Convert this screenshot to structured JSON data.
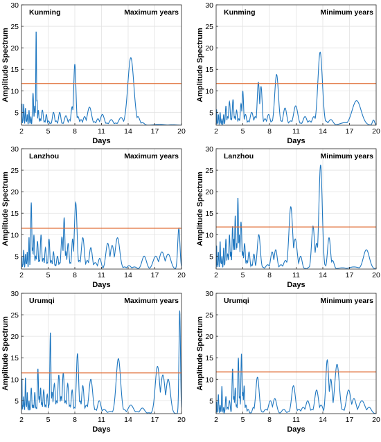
{
  "figure": {
    "threshold_color": "#e0703a",
    "series_color": "#1f77c0",
    "grid_color": "#e2e2e2"
  },
  "chart_data": [
    {
      "type": "line",
      "station": "Kunming",
      "period": "Maximum years",
      "xlabel": "Days",
      "ylabel": "Amplitude Spectrum",
      "xlim": [
        2,
        20
      ],
      "ylim": [
        2,
        30
      ],
      "xticks": [
        2,
        5,
        8,
        11,
        14,
        17,
        20
      ],
      "yticks": [
        5,
        10,
        15,
        20,
        25,
        30
      ],
      "grid": true,
      "threshold": 11.7,
      "peaks": [
        [
          2.05,
          7.5
        ],
        [
          2.15,
          3.0
        ],
        [
          2.25,
          7.0
        ],
        [
          2.35,
          2.5
        ],
        [
          2.45,
          6.0
        ],
        [
          2.55,
          3.0
        ],
        [
          2.65,
          4.5
        ],
        [
          2.75,
          2.2
        ],
        [
          2.85,
          5.5
        ],
        [
          2.95,
          2.5
        ],
        [
          3.05,
          4.0
        ],
        [
          3.15,
          2.2
        ],
        [
          3.3,
          9.5
        ],
        [
          3.5,
          6.5
        ],
        [
          3.65,
          24.3
        ],
        [
          3.75,
          8.0
        ],
        [
          3.9,
          5.5
        ],
        [
          4.1,
          3.5
        ],
        [
          4.35,
          5.5
        ],
        [
          4.6,
          3.0
        ],
        [
          4.8,
          4.5
        ],
        [
          5.05,
          3.0
        ],
        [
          5.3,
          2.5
        ],
        [
          5.6,
          5.0
        ],
        [
          5.9,
          3.0
        ],
        [
          6.3,
          5.0
        ],
        [
          6.6,
          2.5
        ],
        [
          7.0,
          4.2
        ],
        [
          7.4,
          3.3
        ],
        [
          7.7,
          6.3
        ],
        [
          8.0,
          16.2
        ],
        [
          8.35,
          4.0
        ],
        [
          8.7,
          3.3
        ],
        [
          9.1,
          4.0
        ],
        [
          9.65,
          6.2
        ],
        [
          10.2,
          2.8
        ],
        [
          10.6,
          3.5
        ],
        [
          11.1,
          4.5
        ],
        [
          11.6,
          2.5
        ],
        [
          12.1,
          3.3
        ],
        [
          12.6,
          2.5
        ],
        [
          13.2,
          3.8
        ],
        [
          14.3,
          17.7
        ],
        [
          15.1,
          4.0
        ],
        [
          15.6,
          2.6
        ],
        [
          16.3,
          2.0
        ],
        [
          17.5,
          2.2
        ],
        [
          19.0,
          2.1
        ]
      ]
    },
    {
      "type": "line",
      "station": "Kunming",
      "period": "Minimum years",
      "xlabel": "Days",
      "ylabel": "Amplitude Spectrum",
      "xlim": [
        2,
        20
      ],
      "ylim": [
        2,
        30
      ],
      "xticks": [
        2,
        5,
        8,
        11,
        14,
        17,
        20
      ],
      "yticks": [
        5,
        10,
        15,
        20,
        25,
        30
      ],
      "grid": true,
      "threshold": 11.7,
      "peaks": [
        [
          2.05,
          6.0
        ],
        [
          2.15,
          2.5
        ],
        [
          2.25,
          4.5
        ],
        [
          2.35,
          2.2
        ],
        [
          2.45,
          5.0
        ],
        [
          2.55,
          2.5
        ],
        [
          2.65,
          3.5
        ],
        [
          2.75,
          2.2
        ],
        [
          2.85,
          4.5
        ],
        [
          2.95,
          2.4
        ],
        [
          3.1,
          6.5
        ],
        [
          3.3,
          4.0
        ],
        [
          3.5,
          7.5
        ],
        [
          3.7,
          3.5
        ],
        [
          3.9,
          8.0
        ],
        [
          4.1,
          4.0
        ],
        [
          4.3,
          5.5
        ],
        [
          4.55,
          3.5
        ],
        [
          4.8,
          7.0
        ],
        [
          5.0,
          10.0
        ],
        [
          5.3,
          4.5
        ],
        [
          5.6,
          3.0
        ],
        [
          6.0,
          5.0
        ],
        [
          6.4,
          4.0
        ],
        [
          6.75,
          12.0
        ],
        [
          7.05,
          11.0
        ],
        [
          7.5,
          3.5
        ],
        [
          7.9,
          4.5
        ],
        [
          8.3,
          3.0
        ],
        [
          8.8,
          13.8
        ],
        [
          9.3,
          3.0
        ],
        [
          9.75,
          6.0
        ],
        [
          10.4,
          3.0
        ],
        [
          10.95,
          6.5
        ],
        [
          11.5,
          2.5
        ],
        [
          12.0,
          4.0
        ],
        [
          12.5,
          3.0
        ],
        [
          13.0,
          4.0
        ],
        [
          13.7,
          19.0
        ],
        [
          14.3,
          3.0
        ],
        [
          14.9,
          3.3
        ],
        [
          16.5,
          2.6
        ],
        [
          17.8,
          7.7
        ],
        [
          19.0,
          2.0
        ],
        [
          19.7,
          3.2
        ]
      ]
    },
    {
      "type": "line",
      "station": "Lanzhou",
      "period": "Maximum years",
      "xlabel": "Days",
      "ylabel": "Amplitude Spectrum",
      "xlim": [
        2,
        20
      ],
      "ylim": [
        2,
        30
      ],
      "xticks": [
        2,
        5,
        8,
        11,
        14,
        17,
        20
      ],
      "yticks": [
        5,
        10,
        15,
        20,
        25,
        30
      ],
      "grid": true,
      "threshold": 11.5,
      "peaks": [
        [
          2.05,
          5.0
        ],
        [
          2.15,
          3.0
        ],
        [
          2.25,
          6.5
        ],
        [
          2.35,
          2.5
        ],
        [
          2.45,
          5.5
        ],
        [
          2.55,
          3.5
        ],
        [
          2.65,
          6.0
        ],
        [
          2.75,
          2.5
        ],
        [
          2.85,
          9.5
        ],
        [
          2.95,
          3.0
        ],
        [
          3.1,
          17.5
        ],
        [
          3.25,
          7.0
        ],
        [
          3.4,
          10.0
        ],
        [
          3.6,
          5.0
        ],
        [
          3.8,
          8.5
        ],
        [
          4.0,
          4.0
        ],
        [
          4.2,
          10.0
        ],
        [
          4.45,
          4.5
        ],
        [
          4.7,
          7.0
        ],
        [
          4.9,
          3.5
        ],
        [
          5.1,
          9.0
        ],
        [
          5.35,
          4.0
        ],
        [
          5.6,
          6.0
        ],
        [
          5.8,
          3.0
        ],
        [
          6.05,
          5.0
        ],
        [
          6.3,
          3.5
        ],
        [
          6.55,
          9.5
        ],
        [
          6.8,
          14.0
        ],
        [
          7.0,
          6.0
        ],
        [
          7.25,
          8.0
        ],
        [
          7.5,
          3.5
        ],
        [
          7.75,
          9.0
        ],
        [
          8.1,
          17.5
        ],
        [
          8.5,
          4.0
        ],
        [
          8.9,
          9.3
        ],
        [
          9.4,
          4.0
        ],
        [
          9.8,
          7.0
        ],
        [
          10.3,
          3.5
        ],
        [
          10.8,
          4.5
        ],
        [
          11.2,
          2.2
        ],
        [
          11.7,
          8.0
        ],
        [
          12.2,
          7.5
        ],
        [
          12.8,
          9.3
        ],
        [
          13.6,
          2.5
        ],
        [
          14.1,
          2.8
        ],
        [
          14.7,
          2.5
        ],
        [
          15.8,
          5.0
        ],
        [
          16.4,
          2.2
        ],
        [
          17.1,
          5.0
        ],
        [
          17.8,
          6.0
        ],
        [
          18.5,
          5.5
        ],
        [
          19.7,
          11.5
        ]
      ]
    },
    {
      "type": "line",
      "station": "Lanzhou",
      "period": "Minimum years",
      "xlabel": "Days",
      "ylabel": "Amplitude Spectrum",
      "xlim": [
        2,
        20
      ],
      "ylim": [
        2,
        30
      ],
      "xticks": [
        2,
        5,
        8,
        11,
        14,
        17,
        20
      ],
      "yticks": [
        5,
        10,
        15,
        20,
        25,
        30
      ],
      "grid": true,
      "threshold": 11.8,
      "peaks": [
        [
          2.05,
          8.0
        ],
        [
          2.15,
          3.0
        ],
        [
          2.25,
          6.0
        ],
        [
          2.35,
          2.5
        ],
        [
          2.45,
          8.5
        ],
        [
          2.55,
          3.5
        ],
        [
          2.65,
          5.0
        ],
        [
          2.75,
          2.5
        ],
        [
          2.85,
          7.0
        ],
        [
          2.95,
          3.0
        ],
        [
          3.1,
          9.0
        ],
        [
          3.3,
          5.5
        ],
        [
          3.5,
          10.0
        ],
        [
          3.65,
          6.0
        ],
        [
          3.85,
          12.0
        ],
        [
          4.0,
          9.0
        ],
        [
          4.15,
          14.5
        ],
        [
          4.3,
          8.0
        ],
        [
          4.45,
          18.7
        ],
        [
          4.6,
          10.0
        ],
        [
          4.8,
          13.0
        ],
        [
          5.0,
          6.0
        ],
        [
          5.2,
          8.0
        ],
        [
          5.45,
          4.0
        ],
        [
          5.7,
          6.0
        ],
        [
          6.0,
          3.0
        ],
        [
          6.25,
          5.5
        ],
        [
          6.8,
          10.0
        ],
        [
          7.2,
          2.5
        ],
        [
          7.8,
          3.0
        ],
        [
          8.3,
          6.0
        ],
        [
          8.7,
          6.5
        ],
        [
          9.3,
          3.0
        ],
        [
          9.8,
          4.0
        ],
        [
          10.4,
          16.5
        ],
        [
          10.9,
          9.0
        ],
        [
          11.5,
          5.0
        ],
        [
          11.9,
          2.2
        ],
        [
          12.5,
          2.5
        ],
        [
          12.9,
          12.0
        ],
        [
          13.3,
          8.0
        ],
        [
          13.75,
          26.2
        ],
        [
          14.2,
          3.0
        ],
        [
          14.7,
          9.3
        ],
        [
          15.1,
          4.0
        ],
        [
          16.2,
          2.3
        ],
        [
          17.5,
          2.5
        ],
        [
          18.9,
          6.5
        ],
        [
          19.7,
          2.2
        ]
      ]
    },
    {
      "type": "line",
      "station": "Urumqi",
      "period": "Maximum years",
      "xlabel": "Days",
      "ylabel": "Amplitude Spectrum",
      "xlim": [
        2,
        20
      ],
      "ylim": [
        2,
        30
      ],
      "xticks": [
        2,
        5,
        8,
        11,
        14,
        17,
        20
      ],
      "yticks": [
        5,
        10,
        15,
        20,
        25,
        30
      ],
      "grid": true,
      "threshold": 11.5,
      "peaks": [
        [
          2.05,
          11.0
        ],
        [
          2.15,
          4.0
        ],
        [
          2.25,
          6.0
        ],
        [
          2.35,
          3.0
        ],
        [
          2.45,
          10.5
        ],
        [
          2.55,
          4.0
        ],
        [
          2.65,
          7.0
        ],
        [
          2.75,
          3.0
        ],
        [
          2.85,
          5.0
        ],
        [
          2.95,
          3.0
        ],
        [
          3.1,
          8.0
        ],
        [
          3.3,
          4.0
        ],
        [
          3.5,
          7.0
        ],
        [
          3.65,
          3.5
        ],
        [
          3.85,
          12.5
        ],
        [
          4.0,
          6.0
        ],
        [
          4.15,
          8.0
        ],
        [
          4.3,
          4.5
        ],
        [
          4.5,
          7.5
        ],
        [
          4.7,
          4.0
        ],
        [
          4.9,
          6.5
        ],
        [
          5.1,
          4.0
        ],
        [
          5.25,
          21.0
        ],
        [
          5.45,
          7.0
        ],
        [
          5.7,
          9.0
        ],
        [
          5.95,
          5.0
        ],
        [
          6.2,
          11.0
        ],
        [
          6.45,
          6.0
        ],
        [
          6.7,
          11.5
        ],
        [
          6.95,
          5.0
        ],
        [
          7.2,
          9.0
        ],
        [
          7.45,
          4.0
        ],
        [
          7.7,
          7.5
        ],
        [
          7.95,
          3.5
        ],
        [
          8.3,
          16.0
        ],
        [
          8.6,
          5.0
        ],
        [
          8.9,
          8.5
        ],
        [
          9.3,
          4.0
        ],
        [
          9.8,
          10.0
        ],
        [
          10.3,
          3.0
        ],
        [
          10.75,
          5.0
        ],
        [
          11.3,
          3.0
        ],
        [
          12.0,
          2.5
        ],
        [
          12.9,
          14.8
        ],
        [
          13.5,
          3.0
        ],
        [
          14.3,
          4.0
        ],
        [
          15.0,
          2.5
        ],
        [
          15.6,
          3.3
        ],
        [
          16.3,
          2.2
        ],
        [
          17.3,
          13.0
        ],
        [
          17.9,
          11.0
        ],
        [
          18.5,
          10.0
        ],
        [
          19.8,
          26.0
        ]
      ]
    },
    {
      "type": "line",
      "station": "Urumqi",
      "period": "Minimum years",
      "xlabel": "Days",
      "ylabel": "Amplitude Spectrum",
      "xlim": [
        2,
        20
      ],
      "ylim": [
        2,
        30
      ],
      "xticks": [
        2,
        5,
        8,
        11,
        14,
        17,
        20
      ],
      "yticks": [
        5,
        10,
        15,
        20,
        25,
        30
      ],
      "grid": true,
      "threshold": 11.7,
      "peaks": [
        [
          2.05,
          5.0
        ],
        [
          2.15,
          2.5
        ],
        [
          2.25,
          6.5
        ],
        [
          2.35,
          2.2
        ],
        [
          2.45,
          4.0
        ],
        [
          2.55,
          2.5
        ],
        [
          2.65,
          8.5
        ],
        [
          2.75,
          2.5
        ],
        [
          2.85,
          3.5
        ],
        [
          2.95,
          2.2
        ],
        [
          3.1,
          6.0
        ],
        [
          3.3,
          3.5
        ],
        [
          3.5,
          5.0
        ],
        [
          3.7,
          2.5
        ],
        [
          3.85,
          12.5
        ],
        [
          4.0,
          6.0
        ],
        [
          4.15,
          8.0
        ],
        [
          4.3,
          4.0
        ],
        [
          4.5,
          15.0
        ],
        [
          4.65,
          6.0
        ],
        [
          4.85,
          16.0
        ],
        [
          5.0,
          7.0
        ],
        [
          5.15,
          8.5
        ],
        [
          5.35,
          4.0
        ],
        [
          5.6,
          3.0
        ],
        [
          5.9,
          2.2
        ],
        [
          6.2,
          3.5
        ],
        [
          6.65,
          10.5
        ],
        [
          7.1,
          2.5
        ],
        [
          7.6,
          3.0
        ],
        [
          8.1,
          5.0
        ],
        [
          8.6,
          5.5
        ],
        [
          9.1,
          2.2
        ],
        [
          9.6,
          3.0
        ],
        [
          10.2,
          2.5
        ],
        [
          10.7,
          8.5
        ],
        [
          11.3,
          3.0
        ],
        [
          11.8,
          3.5
        ],
        [
          12.3,
          5.0
        ],
        [
          12.8,
          3.0
        ],
        [
          13.3,
          7.5
        ],
        [
          13.8,
          4.0
        ],
        [
          14.5,
          14.5
        ],
        [
          14.9,
          10.0
        ],
        [
          15.6,
          13.5
        ],
        [
          16.2,
          3.0
        ],
        [
          16.9,
          7.5
        ],
        [
          17.5,
          5.5
        ],
        [
          18.4,
          5.0
        ],
        [
          19.2,
          3.5
        ],
        [
          19.8,
          2.0
        ]
      ]
    }
  ]
}
